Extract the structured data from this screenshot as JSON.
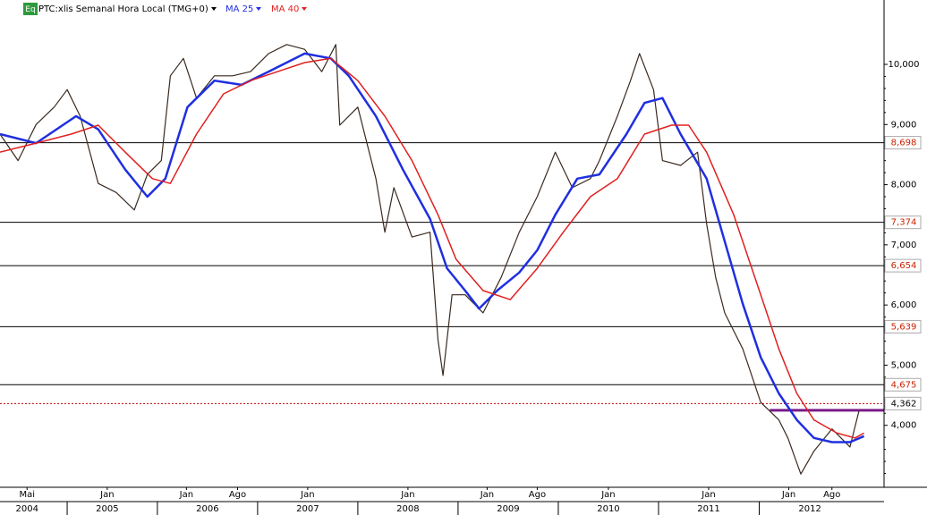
{
  "chart_data": {
    "type": "line",
    "title": "PTC:xlis Semanal Hora Local (TMG+0)",
    "badge": "Eq",
    "xlim": [
      2004.42,
      2013.24
    ],
    "ylim": [
      2970,
      11070
    ],
    "yticks": [
      {
        "value": 4000,
        "label": "4,000"
      },
      {
        "value": 5000,
        "label": "5,000"
      },
      {
        "value": 6000,
        "label": "6,000"
      },
      {
        "value": 7000,
        "label": "7,000"
      },
      {
        "value": 8000,
        "label": "8,000"
      },
      {
        "value": 9000,
        "label": "9,000"
      },
      {
        "value": 10000,
        "label": "10,000"
      }
    ],
    "xticks": [
      {
        "value": 2004.69,
        "label": "Mai"
      },
      {
        "value": 2005.49,
        "label": "Jan"
      },
      {
        "value": 2006.28,
        "label": "Jan"
      },
      {
        "value": 2006.79,
        "label": "Ago"
      },
      {
        "value": 2007.49,
        "label": "Jan"
      },
      {
        "value": 2008.49,
        "label": "Jan"
      },
      {
        "value": 2009.28,
        "label": "Jan"
      },
      {
        "value": 2009.78,
        "label": "Ago"
      },
      {
        "value": 2010.49,
        "label": "Jan"
      },
      {
        "value": 2011.49,
        "label": "Jan"
      },
      {
        "value": 2012.29,
        "label": "Jan"
      },
      {
        "value": 2012.72,
        "label": "Ago"
      }
    ],
    "year_ticks": [
      {
        "value": 2004.69,
        "label": "2004"
      },
      {
        "value": 2005.49,
        "label": "2005"
      },
      {
        "value": 2006.49,
        "label": "2006"
      },
      {
        "value": 2007.49,
        "label": "2007"
      },
      {
        "value": 2008.49,
        "label": "2008"
      },
      {
        "value": 2009.49,
        "label": "2009"
      },
      {
        "value": 2010.49,
        "label": "2010"
      },
      {
        "value": 2011.49,
        "label": "2011"
      },
      {
        "value": 2012.5,
        "label": "2012"
      }
    ],
    "series": [
      {
        "color": "#3a2a20",
        "x": [
          2004.42,
          2004.6,
          2004.78,
          2004.96,
          2005.09,
          2005.22,
          2005.4,
          2005.58,
          2005.76,
          2005.89,
          2006.03,
          2006.12,
          2006.25,
          2006.38,
          2006.56,
          2006.74,
          2006.92,
          2007.1,
          2007.28,
          2007.46,
          2007.63,
          2007.77,
          2007.81,
          2007.99,
          2008.17,
          2008.26,
          2008.35,
          2008.53,
          2008.71,
          2008.79,
          2008.84,
          2008.93,
          2009.06,
          2009.24,
          2009.42,
          2009.6,
          2009.78,
          2009.96,
          2010.13,
          2010.31,
          2010.4,
          2010.58,
          2010.71,
          2010.8,
          2010.94,
          2011.03,
          2011.21,
          2011.38,
          2011.47,
          2011.56,
          2011.65,
          2011.83,
          2012.01,
          2012.19,
          2012.28,
          2012.41,
          2012.54,
          2012.72,
          2012.9,
          2012.99
        ],
        "values": [
          8840,
          8400,
          9000,
          9290,
          9580,
          9140,
          8020,
          7870,
          7580,
          8170,
          8400,
          9810,
          10100,
          9440,
          9810,
          9810,
          9880,
          10180,
          10330,
          10250,
          9880,
          10330,
          8990,
          9290,
          8100,
          7210,
          7950,
          7130,
          7210,
          5420,
          4830,
          6170,
          6170,
          5870,
          6460,
          7210,
          7800,
          8540,
          7950,
          8100,
          8400,
          9140,
          9730,
          10180,
          9580,
          8400,
          8320,
          8540,
          7350,
          6460,
          5870,
          5270,
          4380,
          4090,
          3790,
          3190,
          3570,
          3940,
          3640,
          4240
        ]
      },
      {
        "name": "MA 25",
        "color": "#1f2fe0",
        "x": [
          2004.42,
          2004.78,
          2005.18,
          2005.4,
          2005.67,
          2005.89,
          2006.07,
          2006.29,
          2006.56,
          2006.83,
          2007.1,
          2007.46,
          2007.72,
          2007.9,
          2008.17,
          2008.44,
          2008.71,
          2008.88,
          2009.06,
          2009.2,
          2009.38,
          2009.6,
          2009.78,
          2009.96,
          2010.18,
          2010.4,
          2010.67,
          2010.85,
          2011.03,
          2011.21,
          2011.47,
          2011.65,
          2011.83,
          2012.01,
          2012.19,
          2012.37,
          2012.54,
          2012.72,
          2012.9,
          2013.04
        ],
        "values": [
          8840,
          8690,
          9140,
          8920,
          8250,
          7800,
          8100,
          9290,
          9730,
          9660,
          9880,
          10180,
          10100,
          9810,
          9140,
          8250,
          7430,
          6610,
          6240,
          5940,
          6240,
          6540,
          6910,
          7500,
          8100,
          8170,
          8840,
          9360,
          9440,
          8840,
          8100,
          7060,
          6020,
          5130,
          4530,
          4090,
          3790,
          3720,
          3720,
          3820
        ]
      },
      {
        "name": "MA 40",
        "color": "#e02020",
        "x": [
          2004.42,
          2004.78,
          2005.13,
          2005.4,
          2005.67,
          2005.94,
          2006.12,
          2006.38,
          2006.65,
          2006.92,
          2007.19,
          2007.46,
          2007.72,
          2007.99,
          2008.26,
          2008.53,
          2008.79,
          2008.97,
          2009.24,
          2009.51,
          2009.78,
          2010.04,
          2010.31,
          2010.58,
          2010.85,
          2011.12,
          2011.29,
          2011.47,
          2011.74,
          2012.01,
          2012.19,
          2012.37,
          2012.54,
          2012.77,
          2012.95,
          2013.04
        ],
        "values": [
          8540,
          8690,
          8840,
          8990,
          8540,
          8100,
          8020,
          8840,
          9510,
          9730,
          9880,
          10030,
          10100,
          9730,
          9140,
          8400,
          7500,
          6760,
          6240,
          6090,
          6610,
          7210,
          7800,
          8100,
          8840,
          8990,
          8990,
          8540,
          7500,
          6170,
          5270,
          4530,
          4090,
          3870,
          3790,
          3870
        ]
      }
    ],
    "levels": [
      {
        "value": 8698,
        "label": "8,698"
      },
      {
        "value": 7374,
        "label": "7,374"
      },
      {
        "value": 6654,
        "label": "6,654"
      },
      {
        "value": 5639,
        "label": "5,639"
      },
      {
        "value": 4675,
        "label": "4,675"
      }
    ],
    "level_color": "#cc2200",
    "current": {
      "value": 4362,
      "label": "4,362",
      "color": "#c00000"
    },
    "trend_line": {
      "value": 4250,
      "x": [
        2012.1,
        2013.24
      ],
      "color": "#7a1a8a"
    }
  }
}
